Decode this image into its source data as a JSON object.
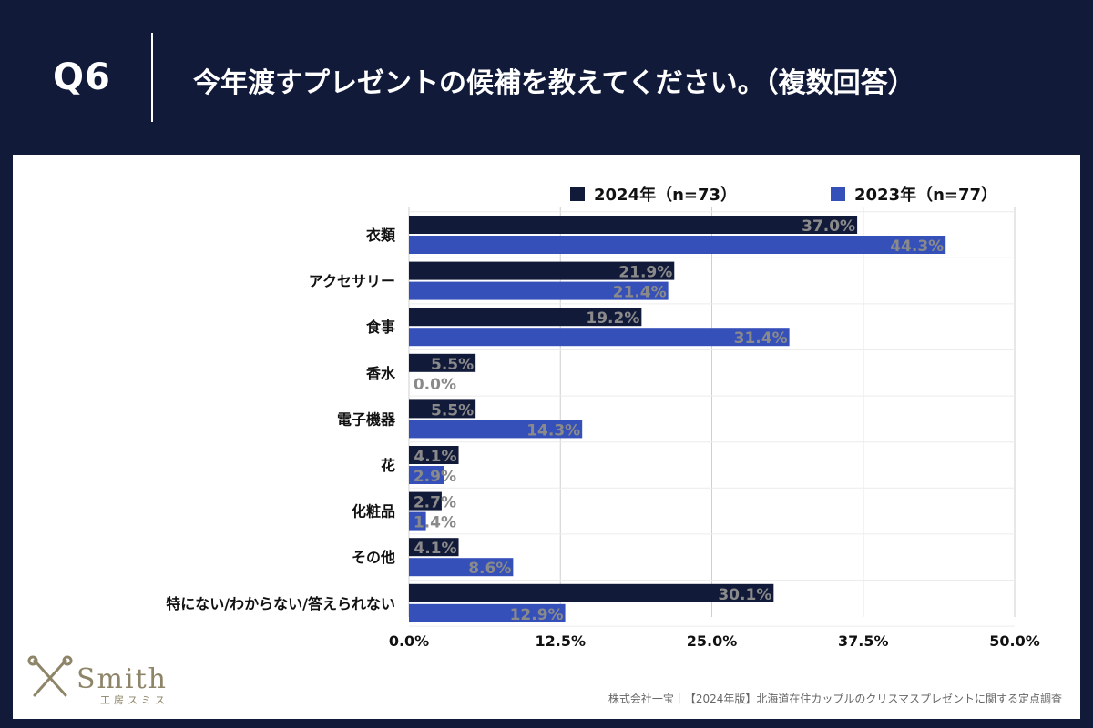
{
  "header": {
    "question": "Q6",
    "title": "今年渡すプレゼントの候補を教えてください。（複数回答）"
  },
  "colors": {
    "series_2024": "#121a3a",
    "series_2023": "#3550b8",
    "grid": "#cfcfcf"
  },
  "chart_data": {
    "type": "bar",
    "orientation": "horizontal",
    "title": "今年渡すプレゼントの候補を教えてください。（複数回答）",
    "categories": [
      "衣類",
      "アクセサリー",
      "食事",
      "香水",
      "電子機器",
      "花",
      "化粧品",
      "その他",
      "特にない/わからない/答えられない"
    ],
    "series": [
      {
        "name": "2024年（n=73）",
        "values": [
          37.0,
          21.9,
          19.2,
          5.5,
          5.5,
          4.1,
          2.7,
          4.1,
          30.1
        ]
      },
      {
        "name": "2023年（n=77）",
        "values": [
          44.3,
          21.4,
          31.4,
          0.0,
          14.3,
          2.9,
          1.4,
          8.6,
          12.9
        ]
      }
    ],
    "value_labels": [
      [
        "37.0%",
        "21.9%",
        "19.2%",
        "5.5%",
        "5.5%",
        "4.1%",
        "2.7%",
        "4.1%",
        "30.1%"
      ],
      [
        "44.3%",
        "21.4%",
        "31.4%",
        "0.0%",
        "14.3%",
        "2.9%",
        "1.4%",
        "8.6%",
        "12.9%"
      ]
    ],
    "xlim": [
      0,
      50
    ],
    "xticks": [
      0,
      12.5,
      25.0,
      37.5,
      50.0
    ],
    "xtick_labels": [
      "0.0%",
      "12.5%",
      "25.0%",
      "37.5%",
      "50.0%"
    ],
    "xlabel": "",
    "ylabel": "",
    "grid": true,
    "legend_position": "top-right"
  },
  "logo": {
    "name": "Smith",
    "sub": "工房スミス"
  },
  "footer": {
    "source": "株式会社一宝｜【2024年版】北海道在住カップルのクリスマスプレゼントに関する定点調査"
  }
}
